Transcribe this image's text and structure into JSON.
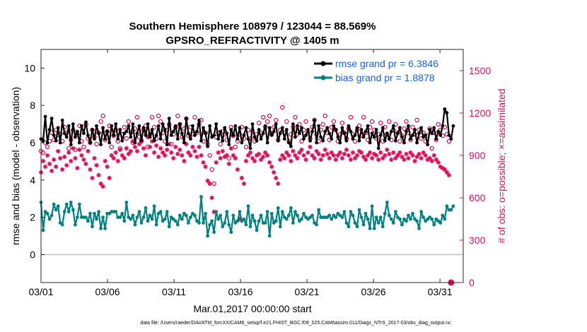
{
  "chart_data": {
    "type": "line",
    "title_line1": "Southern Hemisphere 108979 / 123044 = 88.569%",
    "title_line2": "GPSRO_REFRACTIVITY @ 1405 m",
    "xlabel": "Mar.01,2017 00:00:00 start",
    "ylabel_left": "rmse and bias (model - observation)",
    "ylabel_right": "# of obs: o=possible; ×=assimilated",
    "footnote": "data file: /Users/raeder/DAI/ATM_forcXX/CAM6_setup/f.e21.FHIST_BGC.f09_025.CAM6assim.011/Diags_NTrS_2017-03/obs_diag_output.nc",
    "x_ticks": [
      "03/01",
      "03/06",
      "03/11",
      "03/16",
      "03/21",
      "03/26",
      "03/31"
    ],
    "y_left_ticks": [
      "0",
      "2",
      "4",
      "6",
      "8",
      "10"
    ],
    "y_right_ticks": [
      "0",
      "300",
      "600",
      "900",
      "1200",
      "1500"
    ],
    "xlim": [
      0,
      31.75
    ],
    "ylim_left": [
      -1.5,
      11
    ],
    "ylim_right": [
      0,
      1650
    ],
    "legend": {
      "rmse_label": "rmse grand pr = 6.3846",
      "bias_label": "bias grand pr = 1.8878"
    },
    "colors": {
      "rmse": "#000000",
      "bias": "#008080",
      "obs": "#d6105a",
      "legend_text": "#1a5fd6",
      "zero_line": "#bfbfbf"
    },
    "series": [
      {
        "name": "rmse",
        "values": [
          6.2,
          6.1,
          7.4,
          6.0,
          6.7,
          7.3,
          6.4,
          6.1,
          6.8,
          6.0,
          7.2,
          6.5,
          6.3,
          6.9,
          5.9,
          7.0,
          6.3,
          6.6,
          6.0,
          6.9,
          6.5,
          7.1,
          6.4,
          6.0,
          6.7,
          6.2,
          6.9,
          6.5,
          5.9,
          6.8,
          6.2,
          6.6,
          6.0,
          6.9,
          6.4,
          7.0,
          6.2,
          6.7,
          6.1,
          6.5,
          6.6,
          6.9,
          6.3,
          7.0,
          6.0,
          6.5,
          6.9,
          6.1,
          6.8,
          6.4,
          7.0,
          6.3,
          6.7,
          6.1,
          6.4,
          6.9,
          6.2,
          7.0,
          6.7,
          5.9,
          7.3,
          6.4,
          6.6,
          6.9,
          6.2,
          7.0,
          6.5,
          6.0,
          7.3,
          6.5,
          6.2,
          6.9,
          6.4,
          6.6,
          7.2,
          6.1,
          6.8,
          6.5,
          5.8,
          6.9,
          6.3,
          6.4,
          7.0,
          6.2,
          6.6,
          6.1,
          6.8,
          6.5,
          5.9,
          6.7,
          6.4,
          6.9,
          6.2,
          6.8,
          6.0,
          6.4,
          6.8,
          6.2,
          5.7,
          7.0,
          6.3,
          6.1,
          6.7,
          6.2,
          6.5,
          6.9,
          6.0,
          6.8,
          6.4,
          6.6,
          7.0,
          6.1,
          6.5,
          6.8,
          6.2,
          6.7,
          6.0,
          5.8,
          7.0,
          6.3,
          6.9,
          6.5,
          6.8,
          6.2,
          6.4,
          6.7,
          6.1,
          6.6,
          7.2,
          6.0,
          6.9,
          6.3,
          6.1,
          6.6,
          6.8,
          6.5,
          6.2,
          6.9,
          6.7,
          6.3,
          6.0,
          6.8,
          6.5,
          6.1,
          6.9,
          6.6,
          6.2,
          6.4,
          6.8,
          6.1,
          6.7,
          6.3,
          6.6,
          6.9,
          6.0,
          6.5,
          6.3,
          6.7,
          5.7,
          6.4,
          6.8,
          6.1,
          6.5,
          6.2,
          6.6,
          6.9,
          6.1,
          6.5,
          6.8,
          6.3,
          6.0,
          6.6,
          6.9,
          6.2,
          6.4,
          6.7,
          6.0,
          6.5,
          6.8,
          6.3,
          6.4,
          5.9,
          6.7,
          6.5,
          6.8,
          6.2,
          6.6,
          6.4,
          6.9,
          7.8,
          7.6,
          6.4,
          6.2,
          6.9
        ]
      },
      {
        "name": "bias",
        "values": [
          2.8,
          1.3,
          2.3,
          2.2,
          1.9,
          2.1,
          2.7,
          2.4,
          2.6,
          1.7,
          1.6,
          2.3,
          2.7,
          2.3,
          2.8,
          2.4,
          1.6,
          2.0,
          2.7,
          2.0,
          2.0,
          2.0,
          1.8,
          2.2,
          1.5,
          2.2,
          1.9,
          2.3,
          1.4,
          2.0,
          1.4,
          2.2,
          2.2,
          2.3,
          2.3,
          2.3,
          2.0,
          2.0,
          2.2,
          1.8,
          2.8,
          2.0,
          1.9,
          2.1,
          1.6,
          2.0,
          2.3,
          1.7,
          2.0,
          2.5,
          1.8,
          2.1,
          1.9,
          2.6,
          1.6,
          2.2,
          2.3,
          1.8,
          1.9,
          2.3,
          1.5,
          2.0,
          1.9,
          1.8,
          1.6,
          2.1,
          1.9,
          2.2,
          2.1,
          1.7,
          2.0,
          2.2,
          2.1,
          1.8,
          1.7,
          3.1,
          1.7,
          2.2,
          1.0,
          1.6,
          1.8,
          1.2,
          2.3,
          1.9,
          2.1,
          1.5,
          1.7,
          2.3,
          1.6,
          1.2,
          2.1,
          1.7,
          1.8,
          2.3,
          1.8,
          1.9,
          1.6,
          2.6,
          1.5,
          2.1,
          1.8,
          1.3,
          1.8,
          2.1,
          1.7,
          1.7,
          2.3,
          1.0,
          2.2,
          1.7,
          1.8,
          2.5,
          1.5,
          2.3,
          2.0,
          1.9,
          2.1,
          2.5,
          1.7,
          2.3,
          2.1,
          1.8,
          1.9,
          2.2,
          2.0,
          1.9,
          2.0,
          2.1,
          1.7,
          1.6,
          2.4,
          2.0,
          2.0,
          2.0,
          2.0,
          2.1,
          1.9,
          2.1,
          2.0,
          2.2,
          2.1,
          2.0,
          2.3,
          1.7,
          1.5,
          2.3,
          2.1,
          1.7,
          1.5,
          2.4,
          2.0,
          1.6,
          2.2,
          1.9,
          1.4,
          2.6,
          1.4,
          2.0,
          1.7,
          2.0,
          1.5,
          2.2,
          2.8,
          2.1,
          1.9,
          1.7,
          2.3,
          2.0,
          1.9,
          1.6,
          1.9,
          1.8,
          2.1,
          1.9,
          2.2,
          1.9,
          1.8,
          1.4,
          2.3,
          2.0,
          1.8,
          1.9,
          2.0,
          1.9,
          1.6,
          1.9,
          1.8,
          1.7,
          2.1,
          1.9,
          2.6,
          2.4,
          2.4,
          2.6
        ]
      },
      {
        "name": "obs_possible",
        "values": [
          930,
          920,
          990,
          960,
          1000,
          1060,
          1010,
          1080,
          1020,
          1050,
          1000,
          1100,
          1060,
          950,
          1010,
          1080,
          940,
          1050,
          1110,
          1000,
          960,
          1120,
          1020,
          990,
          1080,
          1030,
          980,
          1060,
          1140,
          1180,
          1010,
          1070,
          1110,
          960,
          1040,
          1080,
          1000,
          950,
          1050,
          1100,
          1020,
          1140,
          1060,
          990,
          1090,
          1170,
          1030,
          1000,
          1080,
          1110,
          960,
          1050,
          1170,
          1100,
          1020,
          1180,
          1140,
          1060,
          1000,
          1080,
          1120,
          980,
          1050,
          1100,
          1180,
          1120,
          1030,
          1090,
          1160,
          1040,
          1100,
          1050,
          1170,
          1060,
          1120,
          1150,
          1000,
          1060,
          980,
          900,
          800,
          700,
          1030,
          1060,
          980,
          1070,
          1050,
          1010,
          880,
          1100,
          1040,
          960,
          1000,
          1050,
          1100,
          1020,
          960,
          1080,
          1020,
          1070,
          1000,
          1050,
          1130,
          1060,
          1170,
          1100,
          1140,
          1180,
          1050,
          1100,
          1150,
          1010,
          1080,
          1240,
          1060,
          1140,
          1000,
          1050,
          1100,
          1170,
          1050,
          1120,
          1000,
          1080,
          1140,
          1060,
          1020,
          1100,
          1150,
          1050,
          1000,
          1080,
          1120,
          1180,
          1060,
          1010,
          1100,
          1140,
          1080,
          1000,
          1050,
          1130,
          1060,
          1020,
          1090,
          1170,
          1050,
          1000,
          1080,
          1110,
          1040,
          1170,
          1060,
          1010,
          1100,
          1140,
          1080,
          1020,
          1050,
          1130,
          1000,
          1100,
          1050,
          1140,
          1010,
          1080,
          1120,
          1060,
          1000,
          1040,
          1090,
          1140,
          1060,
          1010,
          1100,
          1050,
          1150,
          1080,
          1020,
          1060,
          1000,
          1040,
          1090,
          950,
          1060,
          1010,
          1120,
          1080,
          1040,
          1100,
          1050,
          1000
        ]
      },
      {
        "name": "obs_assimilated",
        "values": [
          780,
          860,
          820,
          900,
          840,
          790,
          870,
          820,
          930,
          880,
          800,
          890,
          830,
          920,
          860,
          950,
          880,
          810,
          940,
          900,
          870,
          840,
          930,
          800,
          740,
          880,
          830,
          760,
          700,
          680,
          860,
          820,
          740,
          900,
          880,
          920,
          860,
          940,
          900,
          880,
          950,
          910,
          930,
          1000,
          960,
          930,
          980,
          1010,
          950,
          900,
          1030,
          960,
          1000,
          920,
          970,
          890,
          950,
          920,
          900,
          940,
          980,
          920,
          880,
          960,
          910,
          940,
          900,
          860,
          980,
          920,
          900,
          960,
          930,
          890,
          960,
          900,
          850,
          820,
          720,
          700,
          600,
          500,
          850,
          920,
          880,
          930,
          890,
          900,
          840,
          950,
          900,
          880,
          800,
          450,
          740,
          700,
          860,
          900,
          920,
          880,
          860,
          900,
          910,
          870,
          890,
          920,
          900,
          850,
          820,
          780,
          740,
          700,
          870,
          900,
          880,
          920,
          900,
          860,
          930,
          900,
          880,
          920,
          940,
          900,
          870,
          920,
          960,
          900,
          880,
          930,
          910,
          870,
          900,
          940,
          910,
          880,
          920,
          900,
          870,
          900,
          920,
          880,
          910,
          940,
          900,
          870,
          920,
          880,
          900,
          930,
          920,
          890,
          870,
          900,
          920,
          880,
          910,
          900,
          870,
          920,
          880,
          900,
          940,
          910,
          870,
          920,
          880,
          900,
          920,
          890,
          870,
          910,
          880,
          920,
          900,
          860,
          890,
          910,
          880,
          920,
          900,
          870,
          880,
          860,
          900,
          870,
          850,
          820,
          810,
          800,
          780,
          760,
          0
        ]
      }
    ]
  }
}
